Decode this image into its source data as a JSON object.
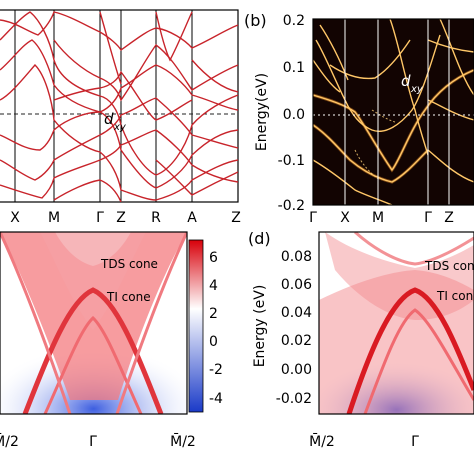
{
  "chart_data": [
    {
      "panel": "a",
      "type": "line",
      "xticks": [
        "X",
        "M",
        "Γ",
        "Z",
        "R",
        "A",
        "Z"
      ],
      "annotations": [
        {
          "text": "d",
          "sub": "xy"
        }
      ],
      "fermi_line": 0,
      "colors": {
        "bands": "#c8242b"
      }
    },
    {
      "panel": "b",
      "label": "(b)",
      "type": "heatmap",
      "ylabel": "Energy(eV)",
      "ylim": [
        -0.2,
        0.2
      ],
      "yticks": [
        "0.2",
        "0.1",
        "0.0",
        "-0.1",
        "-0.2"
      ],
      "xticks": [
        "Γ",
        "X",
        "M",
        "Γ",
        "Z"
      ],
      "annotations": [
        {
          "text": "d",
          "sub": "xy"
        }
      ],
      "colors": {
        "background": "#120402",
        "bands": "#ffb84a"
      }
    },
    {
      "panel": "c",
      "type": "heatmap",
      "colorbar_ticks": [
        "6",
        "4",
        "2",
        "0",
        "-2",
        "-4"
      ],
      "colorbar_range": [
        -4.5,
        6.5
      ],
      "xticks": [
        "M̄/2",
        "Γ̄",
        "M̄/2"
      ],
      "annotations": [
        "TDS cone",
        "TI cone"
      ],
      "colors": {
        "high": "#e8000a",
        "mid": "#ffffff",
        "low": "#1f3fd0"
      }
    },
    {
      "panel": "d",
      "label": "(d)",
      "type": "heatmap",
      "ylabel": "Energy (eV)",
      "ylim": [
        -0.03,
        0.09
      ],
      "yticks": [
        "0.08",
        "0.06",
        "0.04",
        "0.02",
        "0.00",
        "-0.02"
      ],
      "xticks": [
        "M̄/2",
        "Γ̄"
      ],
      "annotations": [
        "TDS cone",
        "TI cone"
      ]
    }
  ]
}
